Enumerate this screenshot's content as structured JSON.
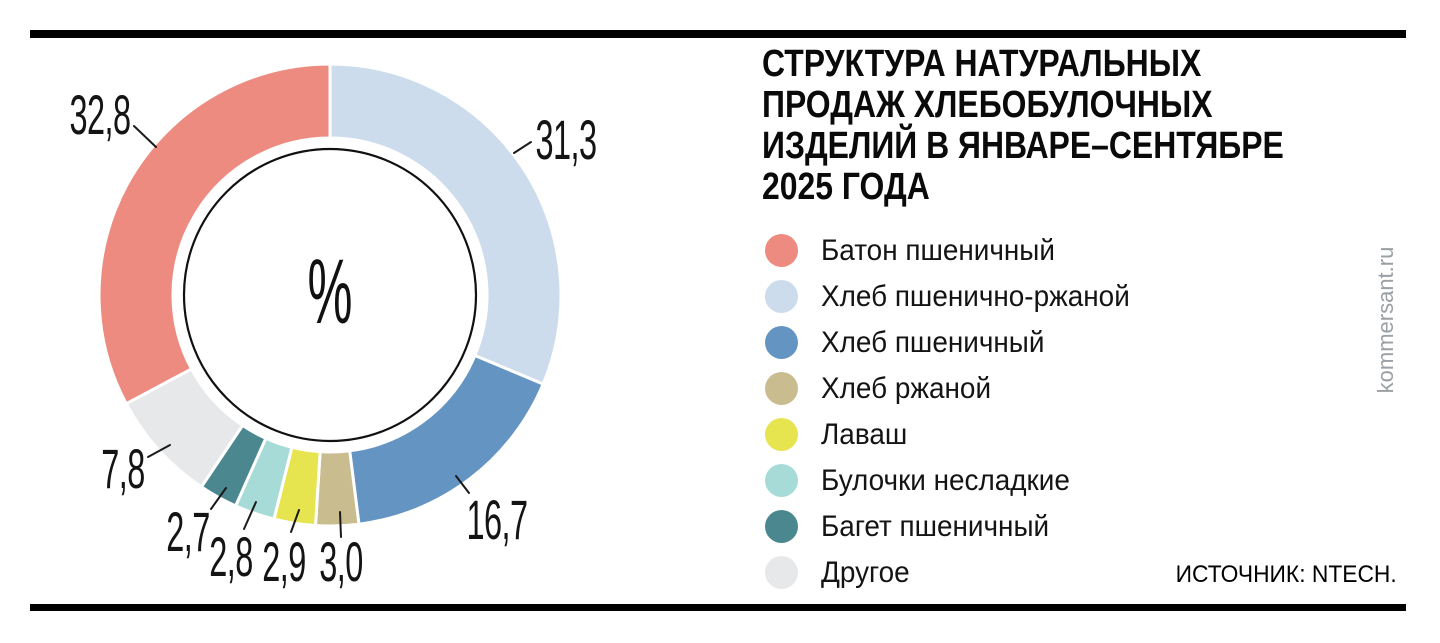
{
  "title": {
    "lines": [
      "СТРУКТУРА НАТУРАЛЬНЫХ",
      "ПРОДАЖ ХЛЕБОБУЛОЧНЫХ",
      "ИЗДЕЛИЙ В ЯНВАРЕ–СЕНТЯБРЕ",
      "2025 ГОДА"
    ]
  },
  "source": "ИСТОЧНИК: NTECH.",
  "watermark": "kommersant.ru",
  "chart_data": {
    "type": "pie",
    "subtype": "donut",
    "title": "Структура натуральных продаж хлебобулочных изделий в январе–сентябре 2025 года",
    "unit": "%",
    "center_label": "%",
    "start_angle_deg": 0,
    "direction": "clockwise",
    "total": 100.0,
    "slices": [
      {
        "label": "Хлеб пшенично-ржаной",
        "value": 31.3,
        "display": "31,3",
        "color": "#ccdcec"
      },
      {
        "label": "Хлеб пшеничный",
        "value": 16.7,
        "display": "16,7",
        "color": "#6494c2"
      },
      {
        "label": "Хлеб ржаной",
        "value": 3.0,
        "display": "3,0",
        "color": "#c9bc8f"
      },
      {
        "label": "Лаваш",
        "value": 2.9,
        "display": "2,9",
        "color": "#e6e44f"
      },
      {
        "label": "Булочки несладкие",
        "value": 2.8,
        "display": "2,8",
        "color": "#a7dbd7"
      },
      {
        "label": "Багет пшеничный",
        "value": 2.7,
        "display": "2,7",
        "color": "#4b878e"
      },
      {
        "label": "Другое",
        "value": 7.8,
        "display": "7,8",
        "color": "#e6e8ea"
      },
      {
        "label": "Батон пшеничный",
        "value": 32.8,
        "display": "32,8",
        "color": "#ee8b80"
      }
    ],
    "legend": {
      "position": "right",
      "items": [
        {
          "label": "Батон пшеничный",
          "color": "#ee8b80"
        },
        {
          "label": "Хлеб пшенично-ржаной",
          "color": "#ccdcec"
        },
        {
          "label": "Хлеб пшеничный",
          "color": "#6494c2"
        },
        {
          "label": "Хлеб ржаной",
          "color": "#c9bc8f"
        },
        {
          "label": "Лаваш",
          "color": "#e6e44f"
        },
        {
          "label": "Булочки несладкие",
          "color": "#a7dbd7"
        },
        {
          "label": "Багет пшеничный",
          "color": "#4b878e"
        },
        {
          "label": "Другое",
          "color": "#e6e8ea"
        }
      ]
    }
  }
}
